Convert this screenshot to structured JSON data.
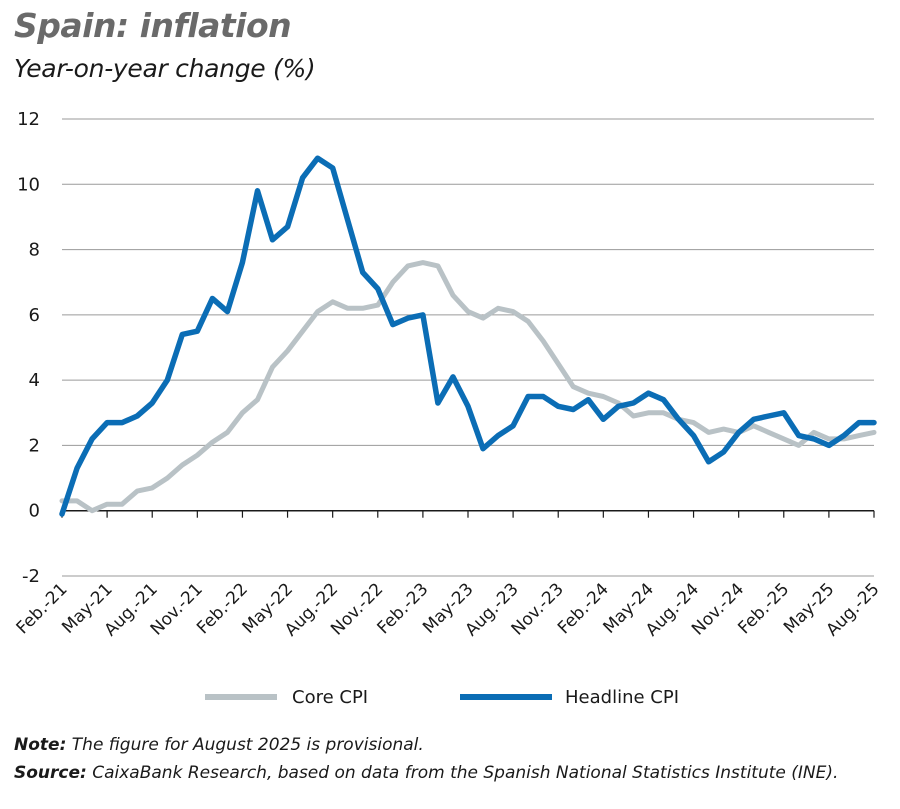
{
  "header": {
    "title": "Spain: inflation",
    "subtitle": "Year-on-year change (%)"
  },
  "footer": {
    "note_label": "Note:",
    "note_text": " The figure for August 2025 is provisional.",
    "source_label": "Source:",
    "source_text": " CaixaBank Research, based on data from the Spanish National Statistics Institute (INE)."
  },
  "chart_data": {
    "type": "line",
    "title": "Spain: inflation",
    "subtitle": "Year-on-year change (%)",
    "ylim": [
      -2,
      12
    ],
    "yticks": [
      -2,
      0,
      2,
      4,
      6,
      8,
      10,
      12
    ],
    "grid": true,
    "legend_placement": "bottom",
    "x": [
      "Feb.-21",
      "Mar.-21",
      "Apr.-21",
      "May-21",
      "Jun.-21",
      "Jul.-21",
      "Aug.-21",
      "Sep.-21",
      "Oct.-21",
      "Nov.-21",
      "Dec.-21",
      "Jan.-22",
      "Feb.-22",
      "Mar.-22",
      "Apr.-22",
      "May-22",
      "Jun.-22",
      "Jul.-22",
      "Aug.-22",
      "Sep.-22",
      "Oct.-22",
      "Nov.-22",
      "Dec.-22",
      "Jan.-23",
      "Feb.-23",
      "Mar.-23",
      "Apr.-23",
      "May-23",
      "Jun.-23",
      "Jul.-23",
      "Aug.-23",
      "Sep.-23",
      "Oct.-23",
      "Nov.-23",
      "Dec.-23",
      "Jan.-24",
      "Feb.-24",
      "Mar.-24",
      "Apr.-24",
      "May-24",
      "Jun.-24",
      "Jul.-24",
      "Aug.-24",
      "Sep.-24",
      "Oct.-24",
      "Nov.-24",
      "Dec.-24",
      "Jan.-25",
      "Feb.-25",
      "Mar.-25",
      "Apr.-25",
      "May-25",
      "Jun.-25",
      "Jul.-25",
      "Aug.-25"
    ],
    "xtick_labels": [
      "Feb.-21",
      "May-21",
      "Aug.-21",
      "Nov.-21",
      "Feb.-22",
      "May-22",
      "Aug.-22",
      "Nov.-22",
      "Feb.-23",
      "May-23",
      "Aug.-23",
      "Nov.-23",
      "Feb.-24",
      "May-24",
      "Aug.-24",
      "Nov.-24",
      "Feb.-25",
      "May-25",
      "Aug.-25"
    ],
    "series": [
      {
        "name": "Core CPI",
        "color": "#b9c2c6",
        "values": [
          0.3,
          0.3,
          0.0,
          0.2,
          0.2,
          0.6,
          0.7,
          1.0,
          1.4,
          1.7,
          2.1,
          2.4,
          3.0,
          3.4,
          4.4,
          4.9,
          5.5,
          6.1,
          6.4,
          6.2,
          6.2,
          6.3,
          7.0,
          7.5,
          7.6,
          7.5,
          6.6,
          6.1,
          5.9,
          6.2,
          6.1,
          5.8,
          5.2,
          4.5,
          3.8,
          3.6,
          3.5,
          3.3,
          2.9,
          3.0,
          3.0,
          2.8,
          2.7,
          2.4,
          2.5,
          2.4,
          2.6,
          2.4,
          2.2,
          2.0,
          2.4,
          2.2,
          2.2,
          2.3,
          2.4
        ]
      },
      {
        "name": "Headline CPI",
        "color": "#0b6db5",
        "values": [
          -0.1,
          1.3,
          2.2,
          2.7,
          2.7,
          2.9,
          3.3,
          4.0,
          5.4,
          5.5,
          6.5,
          6.1,
          7.6,
          9.8,
          8.3,
          8.7,
          10.2,
          10.8,
          10.5,
          8.9,
          7.3,
          6.8,
          5.7,
          5.9,
          6.0,
          3.3,
          4.1,
          3.2,
          1.9,
          2.3,
          2.6,
          3.5,
          3.5,
          3.2,
          3.1,
          3.4,
          2.8,
          3.2,
          3.3,
          3.6,
          3.4,
          2.8,
          2.3,
          1.5,
          1.8,
          2.4,
          2.8,
          2.9,
          3.0,
          2.3,
          2.2,
          2.0,
          2.3,
          2.7,
          2.7
        ]
      }
    ]
  }
}
